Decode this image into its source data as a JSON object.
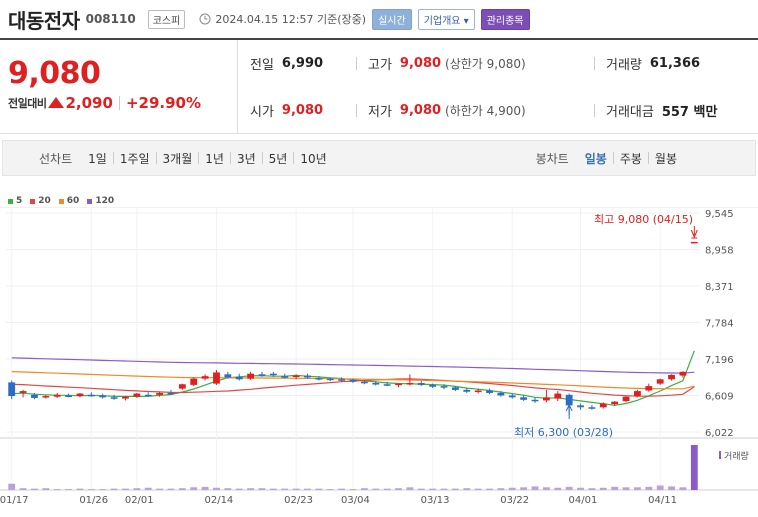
{
  "header": {
    "title": "대동전자",
    "code": "008110",
    "market": "코스피",
    "datetime": "2024.04.15 12:57 기준(장중)",
    "btn_realtime": "실시간",
    "btn_company": "기업개요 ▾",
    "btn_admin": "관리종목"
  },
  "quote": {
    "price": "9,080",
    "change_label": "전일대비",
    "change": "2,090",
    "change_pct": "+29.90%",
    "prev_label": "전일",
    "prev": "6,990",
    "high_label": "고가",
    "high": "9,080",
    "high_limit": "(상한가 9,080)",
    "volume_label": "거래량",
    "volume": "61,366",
    "open_label": "시가",
    "open": "9,080",
    "low_label": "저가",
    "low": "9,080",
    "low_limit": "(하한가 4,900)",
    "amount_label": "거래대금",
    "amount": "557 백만"
  },
  "periods": {
    "line_label": "선차트",
    "line_opts": [
      "1일",
      "1주일",
      "3개월",
      "1년",
      "3년",
      "5년",
      "10년"
    ],
    "candle_label": "봉차트",
    "candle_opts": [
      "일봉",
      "주봉",
      "월봉"
    ],
    "candle_selected": 0
  },
  "colors": {
    "up": "#e02020",
    "down": "#2a6cc8",
    "ma5": "#3cb043",
    "ma20": "#e04848",
    "ma60": "#f08a24",
    "ma120": "#8a5cc8"
  },
  "chart_data": {
    "type": "candlestick",
    "legend": [
      {
        "name": "5",
        "color": "#3cb043"
      },
      {
        "name": "20",
        "color": "#e04848"
      },
      {
        "name": "60",
        "color": "#f08a24"
      },
      {
        "name": "120",
        "color": "#8a5cc8"
      }
    ],
    "y_ticks": [
      "9,545",
      "8,958",
      "8,371",
      "7,784",
      "7,196",
      "6,609",
      "6,022"
    ],
    "y_tick_values": [
      9545,
      8958,
      8371,
      7784,
      7196,
      6609,
      6022
    ],
    "x_ticks": [
      {
        "label": "01/17",
        "idx": 0
      },
      {
        "label": "01/26",
        "idx": 7
      },
      {
        "label": "02/01",
        "idx": 11
      },
      {
        "label": "02/14",
        "idx": 18
      },
      {
        "label": "02/23",
        "idx": 25
      },
      {
        "label": "03/04",
        "idx": 30
      },
      {
        "label": "03/13",
        "idx": 37
      },
      {
        "label": "03/22",
        "idx": 44
      },
      {
        "label": "04/01",
        "idx": 50
      },
      {
        "label": "04/11",
        "idx": 57
      }
    ],
    "annot_high": "최고 9,080 (04/15)",
    "annot_low": "최저 6,300 (03/28)",
    "volume_label": "거래량",
    "ohlc": [
      [
        6820,
        6850,
        6550,
        6600
      ],
      [
        6650,
        6700,
        6580,
        6680
      ],
      [
        6620,
        6650,
        6550,
        6570
      ],
      [
        6600,
        6620,
        6560,
        6600
      ],
      [
        6590,
        6650,
        6570,
        6620
      ],
      [
        6610,
        6640,
        6580,
        6590
      ],
      [
        6600,
        6650,
        6580,
        6640
      ],
      [
        6620,
        6660,
        6590,
        6600
      ],
      [
        6610,
        6640,
        6560,
        6580
      ],
      [
        6580,
        6620,
        6540,
        6560
      ],
      [
        6560,
        6600,
        6530,
        6590
      ],
      [
        6590,
        6650,
        6570,
        6640
      ],
      [
        6620,
        6660,
        6590,
        6610
      ],
      [
        6620,
        6670,
        6590,
        6650
      ],
      [
        6650,
        6700,
        6620,
        6640
      ],
      [
        6720,
        6800,
        6700,
        6790
      ],
      [
        6780,
        6900,
        6760,
        6880
      ],
      [
        6880,
        6950,
        6850,
        6920
      ],
      [
        6800,
        7020,
        6780,
        6980
      ],
      [
        6950,
        6990,
        6880,
        6900
      ],
      [
        6910,
        6960,
        6850,
        6870
      ],
      [
        6880,
        6990,
        6860,
        6960
      ],
      [
        6950,
        6990,
        6910,
        6930
      ],
      [
        6960,
        6990,
        6910,
        6940
      ],
      [
        6920,
        6960,
        6880,
        6900
      ],
      [
        6910,
        6950,
        6870,
        6930
      ],
      [
        6930,
        6960,
        6880,
        6900
      ],
      [
        6890,
        6920,
        6850,
        6870
      ],
      [
        6880,
        6900,
        6840,
        6860
      ],
      [
        6870,
        6900,
        6830,
        6850
      ],
      [
        6860,
        6880,
        6810,
        6830
      ],
      [
        6830,
        6860,
        6790,
        6810
      ],
      [
        6810,
        6840,
        6770,
        6790
      ],
      [
        6790,
        6830,
        6760,
        6780
      ],
      [
        6780,
        6810,
        6740,
        6800
      ],
      [
        6790,
        6950,
        6770,
        6810
      ],
      [
        6810,
        6840,
        6760,
        6780
      ],
      [
        6780,
        6800,
        6730,
        6750
      ],
      [
        6760,
        6790,
        6710,
        6740
      ],
      [
        6740,
        6760,
        6680,
        6700
      ],
      [
        6700,
        6730,
        6650,
        6670
      ],
      [
        6680,
        6720,
        6640,
        6690
      ],
      [
        6690,
        6720,
        6630,
        6650
      ],
      [
        6650,
        6680,
        6590,
        6610
      ],
      [
        6610,
        6640,
        6560,
        6580
      ],
      [
        6580,
        6610,
        6520,
        6540
      ],
      [
        6540,
        6580,
        6490,
        6520
      ],
      [
        6530,
        6700,
        6500,
        6580
      ],
      [
        6560,
        6680,
        6520,
        6640
      ],
      [
        6620,
        6640,
        6300,
        6450
      ],
      [
        6450,
        6480,
        6380,
        6420
      ],
      [
        6420,
        6460,
        6380,
        6400
      ],
      [
        6420,
        6500,
        6400,
        6480
      ],
      [
        6470,
        6520,
        6440,
        6510
      ],
      [
        6520,
        6600,
        6500,
        6590
      ],
      [
        6600,
        6700,
        6580,
        6680
      ],
      [
        6690,
        6800,
        6670,
        6760
      ],
      [
        6800,
        6880,
        6780,
        6870
      ],
      [
        6870,
        6950,
        6850,
        6940
      ],
      [
        6930,
        7000,
        6900,
        6990
      ],
      [
        9080,
        9080,
        9080,
        9080
      ]
    ],
    "volume": [
      14,
      4,
      3,
      4,
      2,
      2,
      3,
      2,
      2,
      3,
      3,
      4,
      5,
      3,
      3,
      4,
      6,
      7,
      5,
      4,
      3,
      4,
      4,
      3,
      3,
      3,
      3,
      3,
      2,
      3,
      2,
      4,
      3,
      3,
      4,
      6,
      3,
      3,
      3,
      3,
      4,
      3,
      3,
      4,
      5,
      6,
      8,
      6,
      5,
      7,
      5,
      4,
      5,
      7,
      6,
      6,
      7,
      10,
      8,
      6,
      100
    ]
  }
}
